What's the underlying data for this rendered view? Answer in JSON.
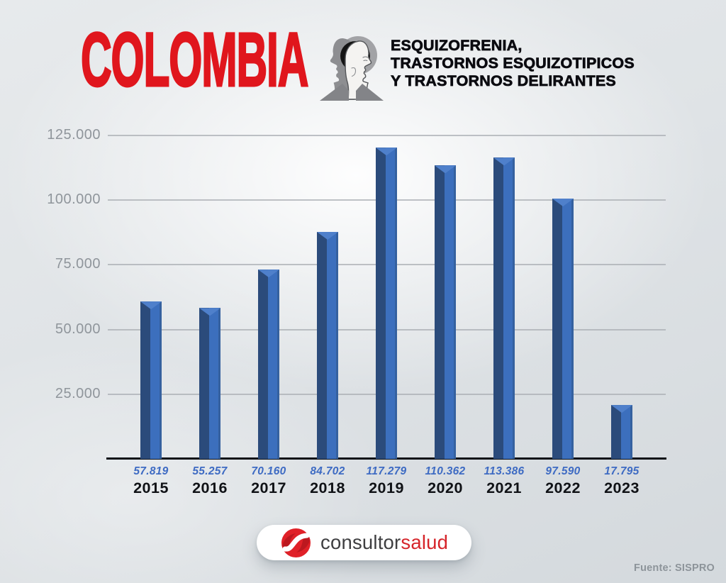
{
  "header": {
    "country": "COLOMBIA",
    "subtitle_lines": [
      "ESQUIZOFRENIA,",
      "TRASTORNOS ESQUIZOTIPICOS",
      "Y TRASTORNOS DELIRANTES"
    ]
  },
  "chart_data": {
    "type": "bar",
    "title": "ESQUIZOFRENIA, TRASTORNOS ESQUIZOTIPICOS Y TRASTORNOS DELIRANTES",
    "categories": [
      "2015",
      "2016",
      "2017",
      "2018",
      "2019",
      "2020",
      "2021",
      "2022",
      "2023"
    ],
    "values": [
      57819,
      55257,
      70160,
      84702,
      117279,
      110362,
      113386,
      97590,
      17795
    ],
    "value_labels": [
      "57.819",
      "55.257",
      "70.160",
      "84.702",
      "117.279",
      "110.362",
      "113.386",
      "97.590",
      "17.795"
    ],
    "y_ticks": [
      "25.000",
      "50.000",
      "75.000",
      "100.000",
      "125.000"
    ],
    "ylim": [
      0,
      125000
    ],
    "grid": true,
    "legend": false,
    "xlabel": "",
    "ylabel": "",
    "colors": {
      "bar_left": "#2b4b7b",
      "bar_right": "#3c6fbd",
      "bar_edge": "#35619f",
      "bar_top": "#4f80cb",
      "value_label": "#3e6bc3"
    }
  },
  "footer": {
    "brand": {
      "part1": "consultor",
      "part2": "salud"
    },
    "source": "Fuente: SISPRO"
  },
  "colors": {
    "title_red": "#e0161d",
    "subtitle_text": "#0b0b10",
    "axis": "#0d1117",
    "gridline": "#a9aeb3",
    "tick_label": "#8f959b",
    "year_label": "#101216",
    "background": "#dfe3e6",
    "logo_red": "#d6242a"
  }
}
